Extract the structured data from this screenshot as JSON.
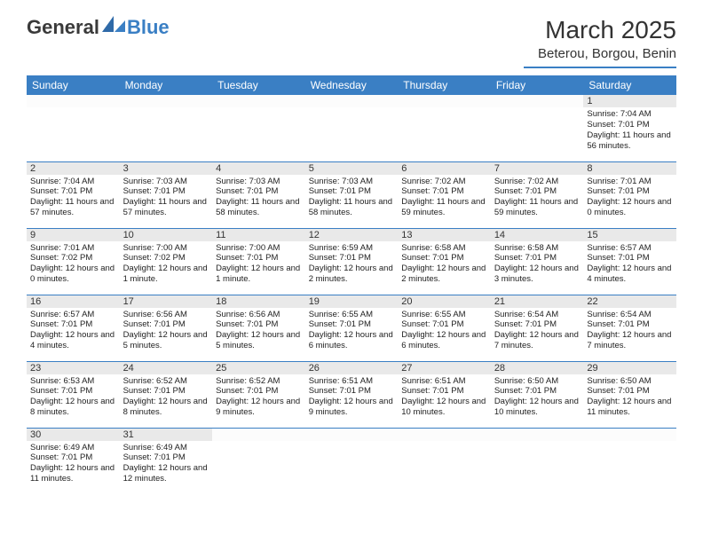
{
  "logo": {
    "text1": "General",
    "text2": "Blue"
  },
  "title": "March 2025",
  "location": "Beterou, Borgou, Benin",
  "colors": {
    "brand": "#3a7fc4",
    "headerText": "#ffffff",
    "dayNumBg": "#e9e9e9",
    "text": "#222222"
  },
  "dayNames": [
    "Sunday",
    "Monday",
    "Tuesday",
    "Wednesday",
    "Thursday",
    "Friday",
    "Saturday"
  ],
  "weeks": [
    [
      {
        "n": "",
        "sr": "",
        "ss": "",
        "dl": ""
      },
      {
        "n": "",
        "sr": "",
        "ss": "",
        "dl": ""
      },
      {
        "n": "",
        "sr": "",
        "ss": "",
        "dl": ""
      },
      {
        "n": "",
        "sr": "",
        "ss": "",
        "dl": ""
      },
      {
        "n": "",
        "sr": "",
        "ss": "",
        "dl": ""
      },
      {
        "n": "",
        "sr": "",
        "ss": "",
        "dl": ""
      },
      {
        "n": "1",
        "sr": "Sunrise: 7:04 AM",
        "ss": "Sunset: 7:01 PM",
        "dl": "Daylight: 11 hours and 56 minutes."
      }
    ],
    [
      {
        "n": "2",
        "sr": "Sunrise: 7:04 AM",
        "ss": "Sunset: 7:01 PM",
        "dl": "Daylight: 11 hours and 57 minutes."
      },
      {
        "n": "3",
        "sr": "Sunrise: 7:03 AM",
        "ss": "Sunset: 7:01 PM",
        "dl": "Daylight: 11 hours and 57 minutes."
      },
      {
        "n": "4",
        "sr": "Sunrise: 7:03 AM",
        "ss": "Sunset: 7:01 PM",
        "dl": "Daylight: 11 hours and 58 minutes."
      },
      {
        "n": "5",
        "sr": "Sunrise: 7:03 AM",
        "ss": "Sunset: 7:01 PM",
        "dl": "Daylight: 11 hours and 58 minutes."
      },
      {
        "n": "6",
        "sr": "Sunrise: 7:02 AM",
        "ss": "Sunset: 7:01 PM",
        "dl": "Daylight: 11 hours and 59 minutes."
      },
      {
        "n": "7",
        "sr": "Sunrise: 7:02 AM",
        "ss": "Sunset: 7:01 PM",
        "dl": "Daylight: 11 hours and 59 minutes."
      },
      {
        "n": "8",
        "sr": "Sunrise: 7:01 AM",
        "ss": "Sunset: 7:01 PM",
        "dl": "Daylight: 12 hours and 0 minutes."
      }
    ],
    [
      {
        "n": "9",
        "sr": "Sunrise: 7:01 AM",
        "ss": "Sunset: 7:02 PM",
        "dl": "Daylight: 12 hours and 0 minutes."
      },
      {
        "n": "10",
        "sr": "Sunrise: 7:00 AM",
        "ss": "Sunset: 7:02 PM",
        "dl": "Daylight: 12 hours and 1 minute."
      },
      {
        "n": "11",
        "sr": "Sunrise: 7:00 AM",
        "ss": "Sunset: 7:01 PM",
        "dl": "Daylight: 12 hours and 1 minute."
      },
      {
        "n": "12",
        "sr": "Sunrise: 6:59 AM",
        "ss": "Sunset: 7:01 PM",
        "dl": "Daylight: 12 hours and 2 minutes."
      },
      {
        "n": "13",
        "sr": "Sunrise: 6:58 AM",
        "ss": "Sunset: 7:01 PM",
        "dl": "Daylight: 12 hours and 2 minutes."
      },
      {
        "n": "14",
        "sr": "Sunrise: 6:58 AM",
        "ss": "Sunset: 7:01 PM",
        "dl": "Daylight: 12 hours and 3 minutes."
      },
      {
        "n": "15",
        "sr": "Sunrise: 6:57 AM",
        "ss": "Sunset: 7:01 PM",
        "dl": "Daylight: 12 hours and 4 minutes."
      }
    ],
    [
      {
        "n": "16",
        "sr": "Sunrise: 6:57 AM",
        "ss": "Sunset: 7:01 PM",
        "dl": "Daylight: 12 hours and 4 minutes."
      },
      {
        "n": "17",
        "sr": "Sunrise: 6:56 AM",
        "ss": "Sunset: 7:01 PM",
        "dl": "Daylight: 12 hours and 5 minutes."
      },
      {
        "n": "18",
        "sr": "Sunrise: 6:56 AM",
        "ss": "Sunset: 7:01 PM",
        "dl": "Daylight: 12 hours and 5 minutes."
      },
      {
        "n": "19",
        "sr": "Sunrise: 6:55 AM",
        "ss": "Sunset: 7:01 PM",
        "dl": "Daylight: 12 hours and 6 minutes."
      },
      {
        "n": "20",
        "sr": "Sunrise: 6:55 AM",
        "ss": "Sunset: 7:01 PM",
        "dl": "Daylight: 12 hours and 6 minutes."
      },
      {
        "n": "21",
        "sr": "Sunrise: 6:54 AM",
        "ss": "Sunset: 7:01 PM",
        "dl": "Daylight: 12 hours and 7 minutes."
      },
      {
        "n": "22",
        "sr": "Sunrise: 6:54 AM",
        "ss": "Sunset: 7:01 PM",
        "dl": "Daylight: 12 hours and 7 minutes."
      }
    ],
    [
      {
        "n": "23",
        "sr": "Sunrise: 6:53 AM",
        "ss": "Sunset: 7:01 PM",
        "dl": "Daylight: 12 hours and 8 minutes."
      },
      {
        "n": "24",
        "sr": "Sunrise: 6:52 AM",
        "ss": "Sunset: 7:01 PM",
        "dl": "Daylight: 12 hours and 8 minutes."
      },
      {
        "n": "25",
        "sr": "Sunrise: 6:52 AM",
        "ss": "Sunset: 7:01 PM",
        "dl": "Daylight: 12 hours and 9 minutes."
      },
      {
        "n": "26",
        "sr": "Sunrise: 6:51 AM",
        "ss": "Sunset: 7:01 PM",
        "dl": "Daylight: 12 hours and 9 minutes."
      },
      {
        "n": "27",
        "sr": "Sunrise: 6:51 AM",
        "ss": "Sunset: 7:01 PM",
        "dl": "Daylight: 12 hours and 10 minutes."
      },
      {
        "n": "28",
        "sr": "Sunrise: 6:50 AM",
        "ss": "Sunset: 7:01 PM",
        "dl": "Daylight: 12 hours and 10 minutes."
      },
      {
        "n": "29",
        "sr": "Sunrise: 6:50 AM",
        "ss": "Sunset: 7:01 PM",
        "dl": "Daylight: 12 hours and 11 minutes."
      }
    ],
    [
      {
        "n": "30",
        "sr": "Sunrise: 6:49 AM",
        "ss": "Sunset: 7:01 PM",
        "dl": "Daylight: 12 hours and 11 minutes."
      },
      {
        "n": "31",
        "sr": "Sunrise: 6:49 AM",
        "ss": "Sunset: 7:01 PM",
        "dl": "Daylight: 12 hours and 12 minutes."
      },
      {
        "n": "",
        "sr": "",
        "ss": "",
        "dl": ""
      },
      {
        "n": "",
        "sr": "",
        "ss": "",
        "dl": ""
      },
      {
        "n": "",
        "sr": "",
        "ss": "",
        "dl": ""
      },
      {
        "n": "",
        "sr": "",
        "ss": "",
        "dl": ""
      },
      {
        "n": "",
        "sr": "",
        "ss": "",
        "dl": ""
      }
    ]
  ]
}
